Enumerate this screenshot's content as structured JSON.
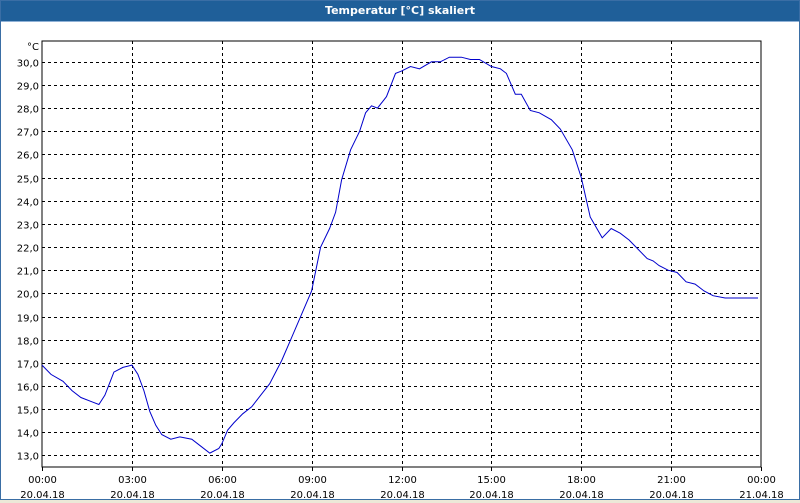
{
  "window": {
    "title": "Temperatur [°C] skaliert"
  },
  "chart_data": {
    "type": "line",
    "title": "Temperatur [°C] skaliert",
    "ylabel": "°C",
    "xlabel": "",
    "ylim": [
      12.5,
      30.9
    ],
    "yticks": [
      13.0,
      14.0,
      15.0,
      16.0,
      17.0,
      18.0,
      19.0,
      20.0,
      21.0,
      22.0,
      23.0,
      24.0,
      25.0,
      26.0,
      27.0,
      28.0,
      29.0,
      30.0
    ],
    "ytick_labels": [
      "13,0",
      "14,0",
      "15,0",
      "16,0",
      "17,0",
      "18,0",
      "19,0",
      "20,0",
      "21,0",
      "22,0",
      "23,0",
      "24,0",
      "25,0",
      "26,0",
      "27,0",
      "28,0",
      "29,0",
      "30,0"
    ],
    "xlim_hours": [
      0,
      24
    ],
    "xticks": [
      {
        "hour": 0,
        "time": "00:00",
        "date": "20.04.18"
      },
      {
        "hour": 3,
        "time": "03:00",
        "date": "20.04.18"
      },
      {
        "hour": 6,
        "time": "06:00",
        "date": "20.04.18"
      },
      {
        "hour": 9,
        "time": "09:00",
        "date": "20.04.18"
      },
      {
        "hour": 12,
        "time": "12:00",
        "date": "20.04.18"
      },
      {
        "hour": 15,
        "time": "15:00",
        "date": "20.04.18"
      },
      {
        "hour": 18,
        "time": "18:00",
        "date": "20.04.18"
      },
      {
        "hour": 21,
        "time": "21:00",
        "date": "20.04.18"
      },
      {
        "hour": 24,
        "time": "00:00",
        "date": "21.04.18"
      }
    ],
    "grid": true,
    "series": [
      {
        "color": "#0000cc",
        "x_hours": [
          0.0,
          0.3,
          0.7,
          1.0,
          1.3,
          1.7,
          1.9,
          2.1,
          2.4,
          2.7,
          3.0,
          3.2,
          3.4,
          3.6,
          3.8,
          4.0,
          4.3,
          4.6,
          5.0,
          5.3,
          5.6,
          5.9,
          6.0,
          6.2,
          6.4,
          6.7,
          7.0,
          7.3,
          7.6,
          8.0,
          8.3,
          8.7,
          9.0,
          9.3,
          9.6,
          9.8,
          10.0,
          10.3,
          10.6,
          10.8,
          11.0,
          11.2,
          11.5,
          11.8,
          12.0,
          12.3,
          12.6,
          13.0,
          13.3,
          13.6,
          14.0,
          14.3,
          14.6,
          15.0,
          15.3,
          15.5,
          15.8,
          16.0,
          16.3,
          16.6,
          17.0,
          17.3,
          17.7,
          18.0,
          18.3,
          18.7,
          19.0,
          19.3,
          19.6,
          19.9,
          20.2,
          20.4,
          20.6,
          20.9,
          21.2,
          21.5,
          21.8,
          22.1,
          22.4,
          22.8,
          23.1,
          23.4,
          23.7,
          23.9
        ],
        "y": [
          16.9,
          16.5,
          16.2,
          15.8,
          15.5,
          15.3,
          15.2,
          15.6,
          16.6,
          16.8,
          16.9,
          16.5,
          15.8,
          14.9,
          14.3,
          13.9,
          13.7,
          13.8,
          13.7,
          13.4,
          13.1,
          13.3,
          13.5,
          14.1,
          14.4,
          14.8,
          15.1,
          15.6,
          16.1,
          17.1,
          18.0,
          19.2,
          20.1,
          22.0,
          22.8,
          23.5,
          24.9,
          26.2,
          27.0,
          27.8,
          28.1,
          28.0,
          28.5,
          29.5,
          29.6,
          29.8,
          29.7,
          30.0,
          30.0,
          30.2,
          30.2,
          30.1,
          30.1,
          29.8,
          29.7,
          29.5,
          28.6,
          28.6,
          27.9,
          27.8,
          27.5,
          27.1,
          26.2,
          25.0,
          23.3,
          22.4,
          22.8,
          22.6,
          22.3,
          21.9,
          21.5,
          21.4,
          21.2,
          21.0,
          20.9,
          20.5,
          20.4,
          20.1,
          19.9,
          19.8,
          19.8,
          19.8,
          19.8,
          19.8
        ]
      }
    ]
  }
}
